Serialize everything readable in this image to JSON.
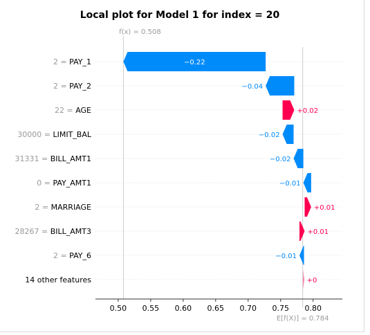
{
  "chart_data": {
    "type": "waterfall",
    "title": "Local plot for Model 1 for index = 20",
    "fx_label": "f(x) = 0.508",
    "efx_label": "E[f(X)] = 0.784",
    "fx": 0.508,
    "efx": 0.784,
    "xlim": [
      0.465,
      0.845
    ],
    "xticks": [
      "0.50",
      "0.55",
      "0.60",
      "0.65",
      "0.70",
      "0.75",
      "0.80"
    ],
    "colors": {
      "positive": "#ff0051",
      "negative": "#008bfb"
    },
    "rows": [
      {
        "value": "2",
        "feature": "PAY_1",
        "label": "−0.22",
        "start": 0.727,
        "end": 0.508
      },
      {
        "value": "2",
        "feature": "PAY_2",
        "label": "−0.04",
        "start": 0.771,
        "end": 0.727
      },
      {
        "value": "22",
        "feature": "AGE",
        "label": "+0.02",
        "start": 0.753,
        "end": 0.771
      },
      {
        "value": "30000",
        "feature": "LIMIT_BAL",
        "label": "−0.02",
        "start": 0.77,
        "end": 0.753
      },
      {
        "value": "31331",
        "feature": "BILL_AMT1",
        "label": "−0.02",
        "start": 0.785,
        "end": 0.77
      },
      {
        "value": "0",
        "feature": "PAY_AMT1",
        "label": "−0.01",
        "start": 0.797,
        "end": 0.785
      },
      {
        "value": "2",
        "feature": "MARRIAGE",
        "label": "+0.01",
        "start": 0.787,
        "end": 0.797
      },
      {
        "value": "28267",
        "feature": "BILL_AMT3",
        "label": "+0.01",
        "start": 0.779,
        "end": 0.787
      },
      {
        "value": "2",
        "feature": "PAY_6",
        "label": "−0.01",
        "start": 0.786,
        "end": 0.779
      },
      {
        "value": "",
        "feature": "14 other features",
        "label": "+0",
        "start": 0.785,
        "end": 0.786
      }
    ]
  }
}
